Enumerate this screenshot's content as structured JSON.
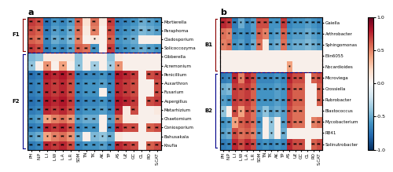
{
  "chart_data": [
    {
      "type": "heatmap",
      "title": "a",
      "x_categories": [
        "PH",
        "N.P",
        "L.I",
        "L.W",
        "L.A",
        "L.R",
        "SOM",
        "TN",
        "TK",
        "AK",
        "TP",
        "AS",
        "UE",
        "GC",
        "CL",
        "RO",
        "S.CAT"
      ],
      "y_categories": [
        "Mortierella",
        "Paraphoma",
        "Cladosporium",
        "Solicoccozyma",
        "Gibberella",
        "Acremonium",
        "Penicillium",
        "Auxarthron",
        "Fusarium",
        "Aspergillus",
        "Metarhizium",
        "Chaetomium",
        "Coniosporium",
        "Bahusakala",
        "Knufia"
      ],
      "cells": [
        [
          0.7,
          0.65,
          -0.75,
          -0.6,
          -0.65,
          -0.55,
          0.6,
          0.15,
          0.55,
          0.1,
          0.7,
          -0.7,
          -0.65,
          -0.6,
          -0.5,
          -0.55,
          -0.6
        ],
        [
          0.65,
          0.6,
          -0.7,
          -0.55,
          -0.6,
          -0.5,
          0.55,
          0.1,
          0.5,
          0.05,
          0.65,
          -0.65,
          -0.6,
          -0.55,
          -0.45,
          -0.5,
          -0.55
        ],
        [
          0.6,
          0.55,
          -0.65,
          -0.5,
          -0.55,
          -0.45,
          0.5,
          0.05,
          0.1,
          0.05,
          0.6,
          -0.6,
          -0.55,
          -0.5,
          0.05,
          0.05,
          0.05
        ],
        [
          0.7,
          0.65,
          -0.7,
          -0.6,
          -0.65,
          -0.55,
          0.6,
          0.55,
          -0.6,
          0.05,
          0.7,
          -0.65,
          -0.6,
          -0.55,
          -0.5,
          -0.55,
          -0.6
        ],
        [
          -0.45,
          -0.4,
          0.1,
          0.1,
          0.1,
          0.1,
          -0.4,
          0.05,
          0.05,
          0.05,
          -0.4,
          0.1,
          0.05,
          0.05,
          0.05,
          0.05,
          0.05
        ],
        [
          -0.4,
          0.05,
          0.45,
          0.05,
          0.4,
          0.05,
          -0.4,
          0.05,
          -0.35,
          0.05,
          -0.35,
          0.45,
          0.05,
          0.05,
          0.05,
          0.05,
          0.05
        ],
        [
          -0.75,
          -0.7,
          0.8,
          0.75,
          0.8,
          0.7,
          -0.7,
          -0.65,
          -0.65,
          -0.6,
          -0.7,
          0.8,
          0.75,
          0.7,
          0.05,
          0.65,
          0.7
        ],
        [
          -0.7,
          -0.65,
          0.75,
          0.7,
          0.75,
          0.65,
          -0.65,
          -0.6,
          -0.6,
          -0.55,
          -0.65,
          0.75,
          0.7,
          0.65,
          0.05,
          0.05,
          0.65
        ],
        [
          -0.7,
          -0.65,
          0.75,
          0.7,
          0.75,
          0.65,
          -0.65,
          -0.6,
          -0.6,
          0.05,
          -0.65,
          0.75,
          0.7,
          0.65,
          0.05,
          0.05,
          0.65
        ],
        [
          -0.75,
          -0.7,
          0.8,
          0.75,
          0.8,
          0.7,
          -0.7,
          -0.65,
          -0.65,
          -0.6,
          -0.7,
          0.8,
          0.75,
          0.7,
          0.05,
          0.65,
          0.7
        ],
        [
          -0.7,
          -0.65,
          0.75,
          0.7,
          0.75,
          0.65,
          -0.65,
          -0.6,
          -0.6,
          -0.55,
          -0.65,
          0.75,
          0.1,
          0.65,
          0.05,
          0.05,
          0.1
        ],
        [
          -0.6,
          -0.55,
          0.4,
          0.5,
          0.55,
          0.45,
          -0.55,
          -0.5,
          -0.5,
          0.05,
          -0.55,
          0.55,
          0.1,
          0.1,
          0.05,
          0.05,
          0.05
        ],
        [
          -0.7,
          -0.65,
          0.75,
          0.7,
          0.75,
          0.65,
          -0.65,
          -0.6,
          -0.6,
          0.05,
          -0.65,
          0.75,
          0.65,
          0.65,
          0.05,
          0.6,
          0.65
        ],
        [
          -0.55,
          -0.5,
          0.4,
          0.5,
          0.55,
          0.45,
          -0.5,
          0.05,
          -0.45,
          -0.4,
          -0.5,
          0.1,
          0.05,
          0.05,
          0.05,
          0.05,
          0.05
        ],
        [
          -0.7,
          -0.65,
          0.75,
          0.7,
          0.75,
          0.65,
          -0.65,
          -0.6,
          -0.6,
          -0.55,
          -0.65,
          0.75,
          0.7,
          0.65,
          0.05,
          0.6,
          0.65
        ]
      ],
      "cell_labels": [
        [
          "**",
          "**",
          "**",
          "**",
          "**",
          "**",
          "**",
          null,
          "**",
          null,
          "**",
          "**",
          "**",
          "**",
          "**",
          "**",
          "**"
        ],
        [
          "**",
          "**",
          "**",
          "**",
          "**",
          "**",
          "**",
          null,
          "**",
          null,
          "**",
          "**",
          "**",
          "**",
          "**",
          "**",
          "**"
        ],
        [
          "**",
          "**",
          "**",
          "**",
          "**",
          "**",
          "**",
          null,
          "*",
          null,
          "**",
          "**",
          "**",
          "**",
          null,
          null,
          null
        ],
        [
          "**",
          "**",
          "**",
          "**",
          "**",
          "**",
          "**",
          "**",
          "**",
          null,
          "**",
          "**",
          "**",
          "**",
          "**",
          "**",
          "**"
        ],
        [
          null,
          null,
          null,
          null,
          null,
          null,
          null,
          null,
          null,
          null,
          null,
          null,
          null,
          null,
          null,
          null,
          null
        ],
        [
          "*",
          null,
          "*",
          null,
          "*",
          null,
          "*",
          null,
          "*",
          null,
          "*",
          "*",
          null,
          null,
          null,
          null,
          null
        ],
        [
          "**",
          "**",
          "**",
          "**",
          "**",
          "**",
          "**",
          "**",
          "**",
          "**",
          "**",
          "**",
          "**",
          "**",
          null,
          "**",
          "**"
        ],
        [
          "**",
          "**",
          "**",
          "**",
          "**",
          "**",
          "**",
          "**",
          "**",
          "**",
          "**",
          "**",
          "**",
          "**",
          null,
          null,
          "**"
        ],
        [
          "**",
          "**",
          "**",
          "**",
          "**",
          "**",
          "**",
          "**",
          "**",
          null,
          "**",
          "**",
          "**",
          "**",
          null,
          null,
          "**"
        ],
        [
          "**",
          "**",
          "**",
          "**",
          "**",
          "**",
          "**",
          "**",
          "**",
          "**",
          "**",
          "**",
          "**",
          "**",
          null,
          "**",
          "**"
        ],
        [
          "**",
          "**",
          "**",
          "**",
          "**",
          "**",
          "**",
          "**",
          "**",
          "**",
          "**",
          "**",
          null,
          "**",
          null,
          null,
          null
        ],
        [
          "**",
          "**",
          "*",
          "**",
          "**",
          "**",
          "**",
          "**",
          "**",
          null,
          "**",
          "**",
          null,
          null,
          null,
          null,
          null
        ],
        [
          "**",
          "**",
          "**",
          "**",
          "**",
          "**",
          "**",
          "**",
          "**",
          null,
          "**",
          "**",
          "**",
          "**",
          null,
          "**",
          "**"
        ],
        [
          "**",
          "**",
          "*",
          "**",
          "**",
          "**",
          "**",
          null,
          "*",
          "*",
          "**",
          null,
          null,
          null,
          null,
          null,
          null
        ],
        [
          "**",
          "**",
          "**",
          "**",
          "**",
          "**",
          "**",
          "**",
          "**",
          "**",
          "**",
          "**",
          "**",
          "**",
          null,
          "**",
          "**"
        ]
      ],
      "groups": [
        {
          "label": "F1",
          "rows": [
            0,
            1,
            2,
            3
          ],
          "color": "#8B0000"
        },
        {
          "label": "F2",
          "rows": [
            4,
            5,
            6,
            7,
            8,
            9,
            10,
            11,
            12,
            13,
            14
          ],
          "color": "#00008B"
        }
      ],
      "color_range": [
        -1,
        1
      ]
    },
    {
      "type": "heatmap",
      "title": "b",
      "x_categories": [
        "PH",
        "N.P",
        "L.I",
        "L.W",
        "L.A",
        "L.R",
        "SOM",
        "TN",
        "TK",
        "AK",
        "TP",
        "AS",
        "UE",
        "GC",
        "CL",
        "RO",
        "S.CAT"
      ],
      "y_categories": [
        "Gaiella",
        "Arthrobacter",
        "Sphingomonas",
        "Elin6055",
        "Nocardioides",
        "Microviega",
        "Crossiella",
        "Rubrobacter",
        "Blastococcus",
        "Mycobacterium",
        "RB41",
        "Solinutrobacter"
      ],
      "cells": [
        [
          0.75,
          0.7,
          -0.7,
          -0.5,
          -0.65,
          -0.55,
          0.65,
          0.65,
          -0.6,
          -0.6,
          0.7,
          -0.65,
          -0.6,
          -0.6,
          -0.55,
          -0.6,
          -0.65
        ],
        [
          0.55,
          0.5,
          -0.65,
          -0.6,
          -0.65,
          -0.55,
          0.6,
          0.5,
          -0.6,
          -0.55,
          0.6,
          -0.6,
          -0.55,
          -0.55,
          -0.5,
          -0.55,
          -0.6
        ],
        [
          0.5,
          0.55,
          -0.6,
          -0.55,
          -0.65,
          -0.5,
          0.55,
          0.1,
          -0.55,
          -0.5,
          0.55,
          -0.55,
          -0.5,
          -0.5,
          -0.45,
          -0.5,
          -0.55
        ],
        [
          0.05,
          0.05,
          0.05,
          0.05,
          0.05,
          0.05,
          0.05,
          0.05,
          0.05,
          0.05,
          0.05,
          0.05,
          0.05,
          0.05,
          0.05,
          0.05,
          0.05
        ],
        [
          0.05,
          0.05,
          0.05,
          0.05,
          0.05,
          0.05,
          0.05,
          0.05,
          0.05,
          0.05,
          0.05,
          0.4,
          0.05,
          0.05,
          0.05,
          0.05,
          0.05
        ],
        [
          -0.7,
          -0.65,
          0.75,
          0.5,
          0.75,
          0.65,
          -0.65,
          -0.65,
          -0.65,
          -0.6,
          -0.65,
          0.75,
          0.65,
          0.65,
          0.05,
          0.6,
          0.65
        ],
        [
          -0.5,
          -0.45,
          0.7,
          0.65,
          0.7,
          0.6,
          -0.6,
          -0.6,
          -0.6,
          -0.55,
          -0.6,
          0.7,
          0.6,
          0.6,
          0.05,
          0.05,
          0.6
        ],
        [
          -0.55,
          -0.6,
          0.7,
          0.65,
          0.7,
          0.6,
          -0.6,
          -0.6,
          -0.6,
          -0.55,
          -0.6,
          0.7,
          0.6,
          0.6,
          0.05,
          0.05,
          0.6
        ],
        [
          -0.4,
          0.05,
          0.65,
          0.4,
          0.65,
          0.55,
          -0.55,
          -0.4,
          -0.55,
          -0.5,
          -0.55,
          0.65,
          0.55,
          0.55,
          0.05,
          0.05,
          0.05
        ],
        [
          -0.6,
          -0.55,
          0.4,
          0.6,
          0.65,
          0.55,
          -0.6,
          0.05,
          -0.4,
          0.05,
          -0.55,
          0.65,
          0.55,
          0.55,
          0.05,
          0.5,
          0.55
        ],
        [
          -0.55,
          -0.5,
          0.65,
          0.55,
          0.6,
          0.5,
          -0.55,
          0.05,
          -0.4,
          0.05,
          -0.5,
          0.05,
          0.05,
          0.05,
          0.05,
          0.05,
          0.05
        ],
        [
          -0.7,
          -0.65,
          0.75,
          0.65,
          0.75,
          0.65,
          -0.65,
          -0.6,
          -0.65,
          -0.6,
          -0.65,
          0.75,
          0.65,
          0.65,
          0.05,
          0.6,
          0.65
        ]
      ],
      "cell_labels": [
        [
          "**",
          "**",
          "**",
          "*",
          "**",
          "**",
          "**",
          "**",
          "**",
          "**",
          "**",
          "**",
          "**",
          "**",
          "**",
          "**",
          "**"
        ],
        [
          "*",
          "*",
          "**",
          "**",
          "**",
          "**",
          "**",
          "*",
          "**",
          "**",
          "**",
          "**",
          "**",
          "**",
          "**",
          "**",
          "**"
        ],
        [
          "*",
          "**",
          "**",
          "**",
          "**",
          "**",
          "**",
          null,
          "**",
          "**",
          "**",
          "**",
          "**",
          "**",
          "**",
          "**",
          "**"
        ],
        [
          null,
          null,
          null,
          null,
          null,
          null,
          null,
          null,
          null,
          null,
          null,
          null,
          null,
          null,
          null,
          null,
          null
        ],
        [
          null,
          null,
          null,
          null,
          null,
          null,
          null,
          null,
          null,
          null,
          null,
          "*",
          null,
          null,
          null,
          null,
          null
        ],
        [
          "*",
          "*",
          "**",
          "*",
          "**",
          "**",
          "**",
          "**",
          "**",
          "**",
          "**",
          "**",
          "**",
          "**",
          null,
          "**",
          "**"
        ],
        [
          "*",
          "*",
          "**",
          "**",
          "**",
          "**",
          "**",
          "**",
          "**",
          "**",
          "**",
          "**",
          "**",
          "**",
          null,
          null,
          "**"
        ],
        [
          "*",
          "**",
          "**",
          "**",
          "**",
          "**",
          "**",
          "**",
          "**",
          "**",
          "**",
          "**",
          "**",
          "**",
          null,
          null,
          "**"
        ],
        [
          "*",
          null,
          "**",
          "*",
          "**",
          "**",
          "**",
          "*",
          "**",
          "**",
          "**",
          "**",
          "**",
          "**",
          null,
          null,
          null
        ],
        [
          "**",
          "**",
          "*",
          "**",
          "**",
          "**",
          "**",
          null,
          "*",
          null,
          "**",
          "**",
          "**",
          "**",
          null,
          "**",
          "**"
        ],
        [
          "**",
          "**",
          "**",
          "**",
          "**",
          "**",
          "**",
          null,
          "*",
          null,
          "**",
          null,
          null,
          null,
          null,
          null,
          null
        ],
        [
          "**",
          "**",
          "**",
          "**",
          "**",
          "**",
          "**",
          "**",
          "**",
          "**",
          "**",
          "**",
          "**",
          "**",
          null,
          "**",
          "**"
        ]
      ],
      "groups": [
        {
          "label": "B1",
          "rows": [
            0,
            1,
            2,
            3,
            4
          ],
          "color": "#8B0000"
        },
        {
          "label": "B2",
          "rows": [
            5,
            6,
            7,
            8,
            9,
            10,
            11
          ],
          "color": "#00008B"
        }
      ],
      "color_range": [
        -1,
        1
      ],
      "colorbar_ticks": [
        {
          "value": 1,
          "label": "1.0"
        },
        0.5,
        {
          "value": 0,
          "label": "0.0"
        },
        -0.5,
        {
          "value": -1,
          "label": "-1.0"
        }
      ]
    }
  ]
}
